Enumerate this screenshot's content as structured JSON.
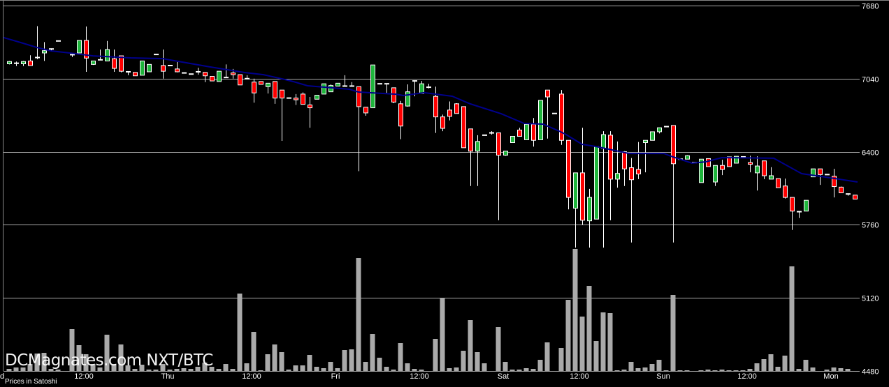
{
  "watermark": "DCMagnates.com NXT/BTC",
  "price_note": "Prices in Satoshi",
  "colors": {
    "up": "#1fb53c",
    "down": "#ff0000",
    "wick": "#ffffff",
    "volume": "#aaaaaa",
    "moving_average": "#00008b",
    "grid": "#aaaaaa",
    "background": "#000000"
  },
  "chart_data": {
    "type": "candlestick",
    "interval": "1 hour",
    "y_ticks": [
      "7680",
      "7040",
      "6400",
      "5760",
      "5120",
      "4480"
    ],
    "ylim": [
      4480,
      7680
    ],
    "grid": true,
    "x_ticks": [
      {
        "label": "ed",
        "candle": -1.3
      },
      {
        "label": "12:00",
        "candle": 10.7
      },
      {
        "label": "Thu",
        "candle": 22.7
      },
      {
        "label": "12:00",
        "candle": 34.7
      },
      {
        "label": "Fri",
        "candle": 46.7
      },
      {
        "label": "12:00",
        "candle": 58.7
      },
      {
        "label": "Sat",
        "candle": 70.7
      },
      {
        "label": "12:00",
        "candle": 81.6
      },
      {
        "label": "Sun",
        "candle": 93.6
      },
      {
        "label": "12:00",
        "candle": 105.6
      },
      {
        "label": "Mon",
        "candle": 117.6
      }
    ],
    "candle_fields": [
      "open",
      "high",
      "low",
      "close",
      "volume_relative"
    ],
    "candles": [
      [
        7170,
        7195,
        7165,
        7190,
        3
      ],
      [
        7175,
        7190,
        7150,
        7175,
        5
      ],
      [
        7170,
        7195,
        7150,
        7190,
        5
      ],
      [
        7195,
        7245,
        7155,
        7155,
        10
      ],
      [
        7215,
        7500,
        7210,
        7225,
        25
      ],
      [
        7265,
        7360,
        7195,
        7285,
        26
      ],
      [
        7290,
        7305,
        7285,
        7300,
        3
      ],
      [
        7370,
        7370,
        7370,
        7370,
        2
      ],
      null,
      [
        7250,
        7265,
        7230,
        7250,
        60
      ],
      [
        7265,
        7375,
        7265,
        7375,
        37
      ],
      [
        7375,
        7497,
        7100,
        7220,
        24
      ],
      [
        7165,
        7195,
        7160,
        7195,
        10
      ],
      [
        7205,
        7295,
        7205,
        7205,
        5
      ],
      [
        7195,
        7370,
        7195,
        7295,
        52
      ],
      [
        7215,
        7295,
        7100,
        7130,
        10
      ],
      [
        7240,
        7240,
        7095,
        7105,
        38
      ],
      [
        7100,
        7100,
        7070,
        7100,
        8
      ],
      [
        7095,
        7095,
        7065,
        7065,
        3
      ],
      [
        7070,
        7195,
        7070,
        7195,
        9
      ],
      [
        7100,
        7165,
        7100,
        7165,
        2
      ],
      [
        7252,
        7252,
        7252,
        7252,
        2
      ],
      [
        7155,
        7295,
        7040,
        7105,
        10
      ],
      [
        7155,
        7155,
        7155,
        7155,
        2
      ],
      [
        7125,
        7185,
        7095,
        7100,
        3
      ],
      [
        7090,
        7095,
        7085,
        7090,
        4
      ],
      [
        7080,
        7080,
        7080,
        7080,
        3
      ],
      [
        7100,
        7135,
        7075,
        7100,
        6
      ],
      [
        7095,
        7095,
        7010,
        7065,
        12
      ],
      [
        7060,
        7060,
        7020,
        7020,
        6
      ],
      [
        7015,
        7105,
        7015,
        7105,
        3
      ],
      [
        7050,
        7165,
        7050,
        7050,
        10
      ],
      [
        7090,
        7125,
        7040,
        7075,
        3
      ],
      [
        7075,
        7075,
        6985,
        6985,
        111
      ],
      [
        7040,
        7070,
        7040,
        7040,
        11
      ],
      [
        7010,
        7040,
        6830,
        6915,
        56
      ],
      [
        7015,
        7015,
        6990,
        6990,
        1
      ],
      [
        6970,
        7000,
        6910,
        7000,
        24
      ],
      [
        7015,
        7015,
        6820,
        6870,
        38
      ],
      [
        6940,
        6940,
        6495,
        6870,
        27
      ],
      [
        6870,
        6870,
        6870,
        6870,
        2
      ],
      [
        6870,
        6905,
        6810,
        6855,
        8
      ],
      [
        6905,
        6920,
        6815,
        6815,
        8
      ],
      [
        6810,
        6880,
        6610,
        6785,
        23
      ],
      [
        6860,
        6895,
        6860,
        6895,
        6
      ],
      [
        6905,
        6995,
        6905,
        6995,
        4
      ],
      [
        6925,
        6990,
        6925,
        6980,
        13
      ],
      [
        6975,
        7000,
        6975,
        7000,
        4
      ],
      [
        6975,
        7070,
        6975,
        6975,
        30
      ],
      [
        6975,
        7010,
        6975,
        6975,
        31
      ],
      [
        6970,
        6970,
        6230,
        6795,
        162
      ],
      [
        6790,
        6790,
        6715,
        6740,
        13
      ],
      [
        6785,
        7160,
        6785,
        7160,
        53
      ],
      [
        6995,
        6995,
        6995,
        6995,
        19
      ],
      [
        6995,
        6995,
        6915,
        6995,
        6
      ],
      [
        6960,
        6960,
        6825,
        6835,
        2
      ],
      [
        6820,
        6845,
        6510,
        6625,
        40
      ],
      [
        6800,
        6990,
        6795,
        6925,
        11
      ],
      [
        7020,
        7020,
        6885,
        7020,
        3
      ],
      [
        6910,
        7020,
        6910,
        6995,
        2
      ],
      [
        6965,
        6995,
        6955,
        6965,
        0
      ],
      [
        6885,
        6970,
        6565,
        6705,
        46
      ],
      [
        6705,
        6725,
        6580,
        6605,
        105
      ],
      [
        6765,
        6840,
        6675,
        6710,
        4
      ],
      [
        6820,
        6825,
        6735,
        6735,
        5
      ],
      [
        6795,
        6795,
        6435,
        6435,
        29
      ],
      [
        6600,
        6600,
        6100,
        6405,
        73
      ],
      [
        6405,
        6545,
        6100,
        6490,
        27
      ],
      [
        6545,
        6545,
        6545,
        6545,
        11
      ],
      [
        6565,
        6580,
        6550,
        6565,
        0
      ],
      [
        6565,
        6565,
        5800,
        6370,
        63
      ],
      [
        6370,
        6405,
        6365,
        6405,
        13
      ],
      [
        6480,
        6535,
        6480,
        6535,
        2
      ],
      [
        6590,
        6610,
        6535,
        6535,
        2
      ],
      [
        6505,
        6645,
        6505,
        6640,
        4
      ],
      [
        6640,
        6695,
        6445,
        6500,
        3
      ],
      [
        6505,
        6850,
        6505,
        6850,
        16
      ],
      [
        6940,
        6940,
        6515,
        6880,
        41
      ],
      [
        6735,
        6735,
        6735,
        6735,
        0
      ],
      [
        6905,
        6940,
        6460,
        6500,
        33
      ],
      [
        6500,
        6500,
        5895,
        6000,
        102
      ],
      [
        5905,
        6215,
        5560,
        6215,
        175
      ],
      [
        6215,
        6610,
        5760,
        5800,
        78
      ],
      [
        5795,
        6075,
        5560,
        6000,
        122
      ],
      [
        5810,
        6445,
        5810,
        6445,
        43
      ],
      [
        6430,
        6580,
        5560,
        6550,
        84
      ],
      [
        6545,
        6580,
        5800,
        6160,
        83
      ],
      [
        6160,
        6490,
        6085,
        6210,
        1
      ],
      [
        6400,
        6405,
        6100,
        6250,
        2
      ],
      [
        6260,
        6345,
        5605,
        6155,
        13
      ],
      [
        6245,
        6485,
        6160,
        6205,
        4
      ],
      [
        6480,
        6500,
        6220,
        6500,
        5
      ],
      [
        6500,
        6575,
        6500,
        6575,
        10
      ],
      [
        6575,
        6610,
        6560,
        6610,
        16
      ],
      [
        6620,
        6620,
        6620,
        6620,
        1
      ],
      [
        6630,
        6630,
        5605,
        6295,
        109
      ],
      [
        6335,
        6335,
        6335,
        6335,
        1
      ],
      [
        6335,
        6370,
        6335,
        6365,
        1
      ],
      [
        6305,
        6305,
        6305,
        6305,
        0
      ],
      [
        6130,
        6335,
        6130,
        6335,
        1
      ],
      [
        6340,
        6340,
        6270,
        6270,
        2
      ],
      [
        6135,
        6280,
        6100,
        6280,
        1
      ],
      [
        6280,
        6330,
        6195,
        6245,
        2
      ],
      [
        6355,
        6355,
        6270,
        6270,
        1
      ],
      [
        6300,
        6360,
        6300,
        6360,
        1
      ],
      [
        6355,
        6355,
        6355,
        6355,
        1
      ],
      [
        6305,
        6365,
        6220,
        6290,
        3
      ],
      [
        6215,
        6360,
        6060,
        6275,
        11
      ],
      [
        6320,
        6320,
        6160,
        6190,
        17
      ],
      [
        6160,
        6265,
        6160,
        6190,
        24
      ],
      [
        6165,
        6165,
        6085,
        6085,
        6
      ],
      [
        6100,
        6165,
        5990,
        6000,
        22
      ],
      [
        6000,
        6000,
        5715,
        5880,
        150
      ],
      [
        5875,
        5875,
        5820,
        5875,
        3
      ],
      [
        5880,
        5975,
        5880,
        5975,
        16
      ],
      [
        6180,
        6250,
        6180,
        6250,
        5
      ],
      [
        6250,
        6250,
        6110,
        6200,
        0
      ],
      [
        6200,
        6200,
        6200,
        6200,
        2
      ],
      [
        6185,
        6250,
        6000,
        6095,
        5
      ],
      [
        6090,
        6095,
        6040,
        6040,
        4
      ],
      [
        6030,
        6030,
        6015,
        6030,
        3
      ],
      [
        6020,
        6020,
        5985,
        5985,
        0
      ]
    ],
    "moving_average": [
      [
        -0.8,
        7400
      ],
      [
        2,
        7350
      ],
      [
        4,
        7313
      ],
      [
        6,
        7283
      ],
      [
        8.7,
        7265
      ],
      [
        12,
        7240
      ],
      [
        17.4,
        7222
      ],
      [
        22,
        7215
      ],
      [
        28.7,
        7143
      ],
      [
        33.7,
        7094
      ],
      [
        36.4,
        7075
      ],
      [
        39.4,
        7033
      ],
      [
        40.7,
        7014
      ],
      [
        42.7,
        6978
      ],
      [
        48.7,
        6947
      ],
      [
        50,
        6923
      ],
      [
        55.4,
        6904
      ],
      [
        56.4,
        6892
      ],
      [
        59.4,
        6917
      ],
      [
        63.4,
        6886
      ],
      [
        66,
        6819
      ],
      [
        70.4,
        6733
      ],
      [
        73.7,
        6648
      ],
      [
        76.4,
        6642
      ],
      [
        78.7,
        6581
      ],
      [
        79.7,
        6550
      ],
      [
        82,
        6465
      ],
      [
        84,
        6446
      ],
      [
        88.7,
        6385
      ],
      [
        93.7,
        6385
      ],
      [
        94.7,
        6361
      ],
      [
        97.7,
        6300
      ],
      [
        99.7,
        6312
      ],
      [
        102,
        6349
      ],
      [
        109.4,
        6343
      ],
      [
        113.4,
        6208
      ],
      [
        117.4,
        6172
      ],
      [
        121.4,
        6135
      ]
    ]
  }
}
